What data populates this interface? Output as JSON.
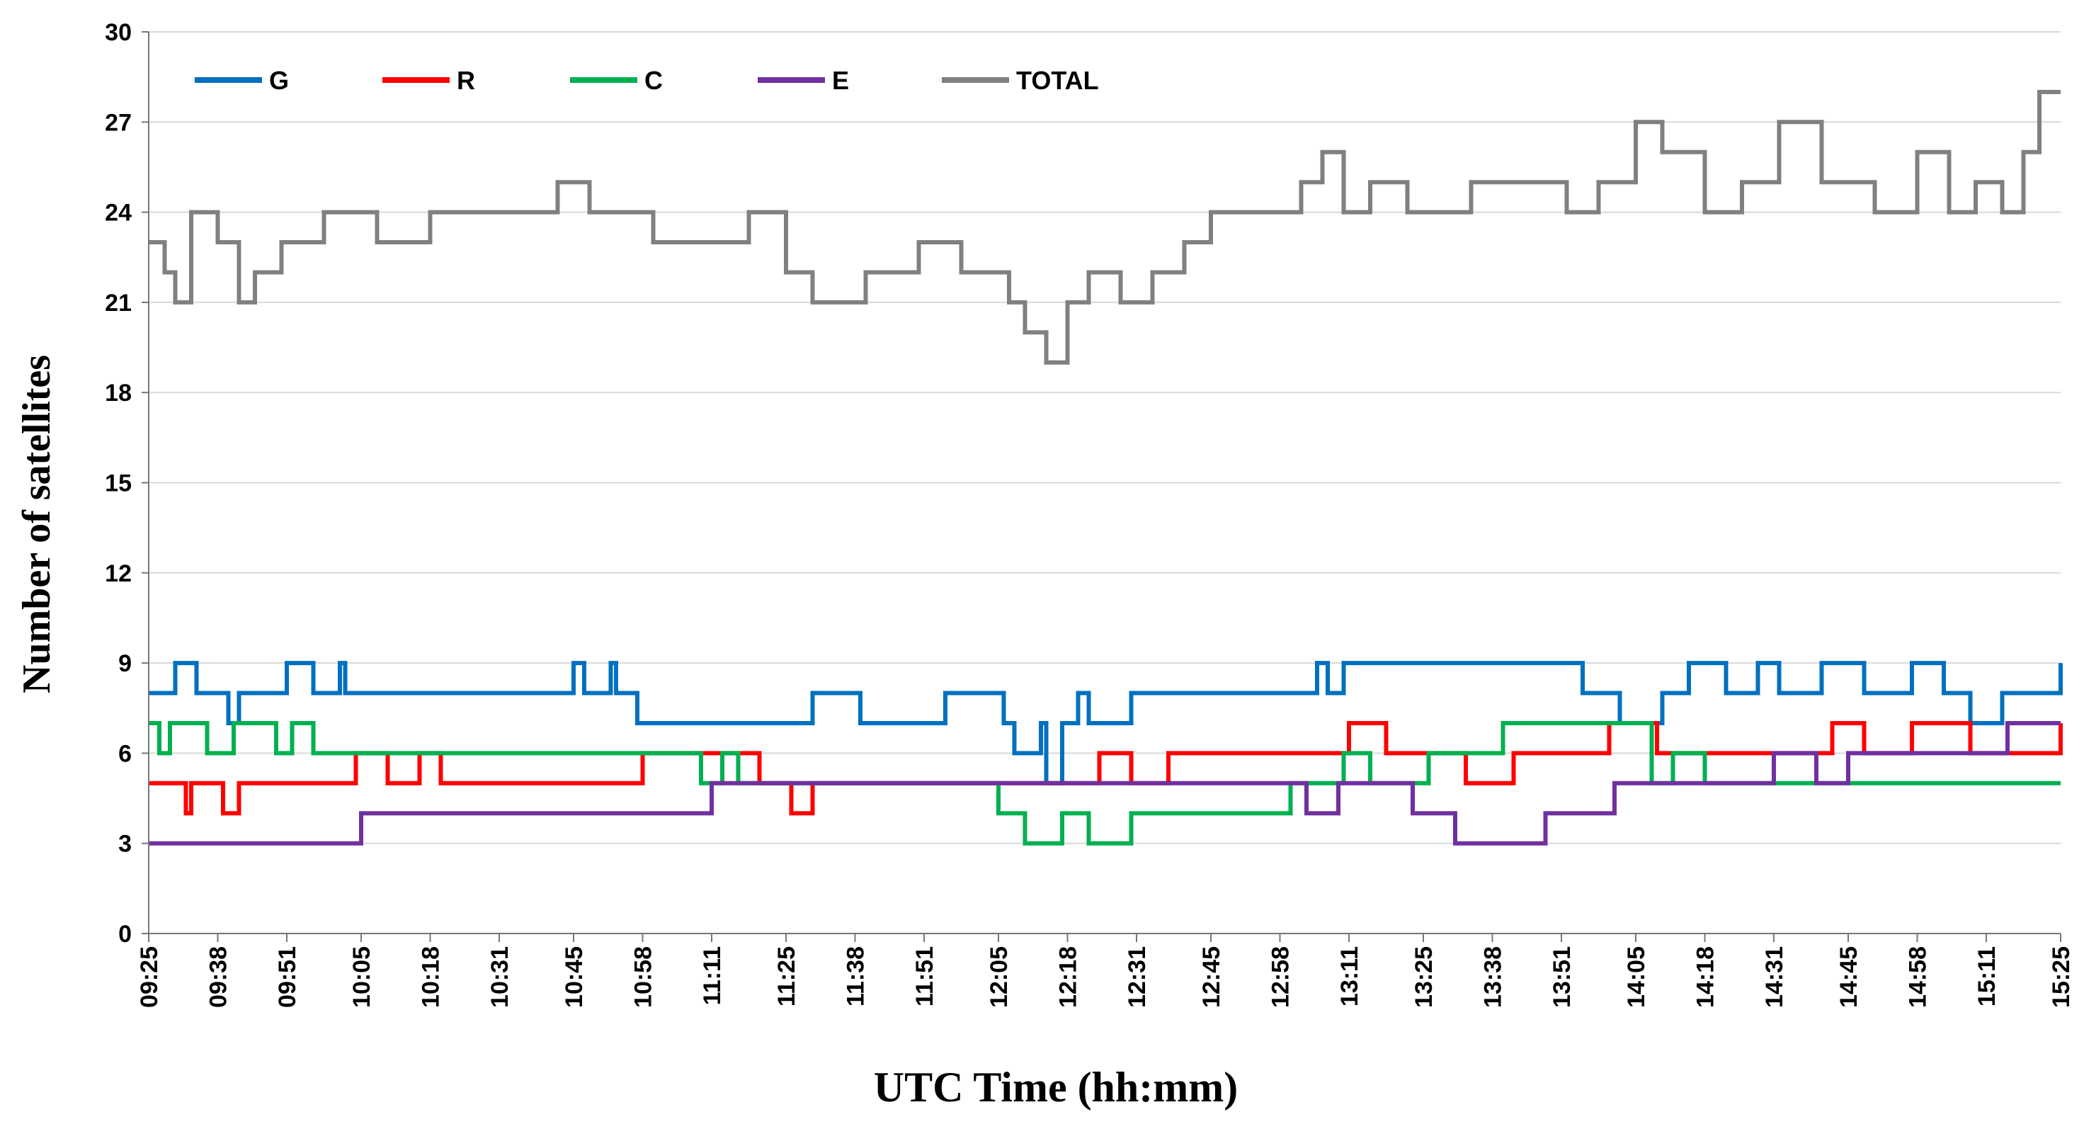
{
  "chart_data": {
    "type": "line",
    "title": "",
    "xlabel": "UTC Time (hh:mm)",
    "ylabel": "Number of satellites",
    "ylim": [
      0,
      30
    ],
    "yticks": [
      0,
      3,
      6,
      9,
      12,
      15,
      18,
      21,
      24,
      27,
      30
    ],
    "xlim": [
      "09:25",
      "15:25"
    ],
    "categories": [
      "09:25",
      "09:38",
      "09:51",
      "10:05",
      "10:18",
      "10:31",
      "10:45",
      "10:58",
      "11:11",
      "11:25",
      "11:38",
      "11:51",
      "12:05",
      "12:18",
      "12:31",
      "12:45",
      "12:58",
      "13:11",
      "13:25",
      "13:38",
      "13:51",
      "14:05",
      "14:18",
      "14:31",
      "14:45",
      "14:58",
      "15:11",
      "15:25"
    ],
    "grid": true,
    "legend_position": "top-left",
    "series": [
      {
        "name": "G",
        "color": "#0070C0",
        "x": [
          "09:25",
          "09:30",
          "09:34",
          "09:35",
          "09:40",
          "09:42",
          "09:44",
          "09:51",
          "09:56",
          "09:59",
          "10:01",
          "10:02",
          "10:03",
          "10:07",
          "10:45",
          "10:47",
          "10:52",
          "10:53",
          "10:55",
          "10:57",
          "11:00",
          "11:20",
          "11:30",
          "11:39",
          "11:45",
          "11:55",
          "12:00",
          "12:06",
          "12:08",
          "12:13",
          "12:14",
          "12:17",
          "12:20",
          "12:22",
          "12:30",
          "12:36",
          "12:45",
          "12:58",
          "13:05",
          "13:07",
          "13:10",
          "13:13",
          "13:24",
          "13:34",
          "13:45",
          "13:55",
          "14:02",
          "14:05",
          "14:10",
          "14:15",
          "14:22",
          "14:28",
          "14:32",
          "14:40",
          "14:48",
          "14:57",
          "15:03",
          "15:05",
          "15:08",
          "15:12",
          "15:14",
          "15:18",
          "15:25"
        ],
        "values": [
          8,
          9,
          8,
          8,
          7,
          8,
          8,
          9,
          8,
          8,
          9,
          8,
          8,
          8,
          9,
          8,
          9,
          8,
          8,
          7,
          7,
          7,
          8,
          7,
          7,
          8,
          8,
          7,
          6,
          7,
          5,
          7,
          8,
          7,
          8,
          8,
          8,
          8,
          9,
          8,
          9,
          9,
          9,
          9,
          9,
          8,
          7,
          7,
          8,
          9,
          8,
          9,
          8,
          9,
          8,
          9,
          8,
          8,
          7,
          7,
          8,
          8,
          9
        ]
      },
      {
        "name": "R",
        "color": "#FF0000",
        "x": [
          "09:25",
          "09:32",
          "09:33",
          "09:39",
          "09:42",
          "09:52",
          "10:04",
          "10:10",
          "10:16",
          "10:20",
          "10:30",
          "10:58",
          "11:12",
          "11:20",
          "11:26",
          "11:30",
          "12:19",
          "12:24",
          "12:30",
          "12:37",
          "12:49",
          "13:07",
          "13:11",
          "13:18",
          "13:33",
          "13:42",
          "13:53",
          "14:00",
          "14:09",
          "14:18",
          "14:27",
          "14:42",
          "14:48",
          "14:57",
          "15:02",
          "15:08",
          "15:25"
        ],
        "values": [
          5,
          4,
          5,
          4,
          5,
          5,
          6,
          5,
          6,
          5,
          5,
          6,
          6,
          5,
          4,
          5,
          5,
          6,
          5,
          6,
          6,
          6,
          7,
          6,
          5,
          6,
          6,
          7,
          6,
          6,
          6,
          7,
          6,
          7,
          7,
          6,
          7
        ]
      },
      {
        "name": "C",
        "color": "#00B050",
        "x": [
          "09:25",
          "09:27",
          "09:29",
          "09:31",
          "09:36",
          "09:41",
          "09:44",
          "09:49",
          "09:52",
          "09:56",
          "10:06",
          "10:30",
          "10:55",
          "11:05",
          "11:09",
          "11:13",
          "11:16",
          "11:20",
          "11:40",
          "12:03",
          "12:05",
          "12:10",
          "12:17",
          "12:22",
          "12:30",
          "12:43",
          "12:55",
          "13:00",
          "13:10",
          "13:15",
          "13:26",
          "13:31",
          "13:40",
          "14:00",
          "14:08",
          "14:12",
          "14:18",
          "14:27",
          "14:35",
          "14:45",
          "15:25"
        ],
        "values": [
          7,
          6,
          7,
          7,
          6,
          7,
          7,
          6,
          7,
          6,
          6,
          6,
          6,
          6,
          5,
          6,
          5,
          5,
          5,
          5,
          4,
          3,
          4,
          3,
          4,
          4,
          4,
          5,
          6,
          5,
          6,
          6,
          7,
          7,
          5,
          6,
          5,
          5,
          5,
          5,
          5
        ]
      },
      {
        "name": "E",
        "color": "#7030A0",
        "x": [
          "09:25",
          "10:05",
          "10:44",
          "11:11",
          "12:57",
          "13:03",
          "13:09",
          "13:12",
          "13:23",
          "13:31",
          "13:38",
          "13:48",
          "13:59",
          "14:01",
          "14:07",
          "14:20",
          "14:31",
          "14:39",
          "14:45",
          "14:52",
          "15:08",
          "15:15",
          "15:25"
        ],
        "values": [
          3,
          4,
          4,
          5,
          5,
          4,
          5,
          5,
          4,
          3,
          3,
          4,
          4,
          5,
          5,
          5,
          6,
          5,
          6,
          6,
          6,
          7,
          7
        ]
      },
      {
        "name": "TOTAL",
        "color": "#808080",
        "x": [
          "09:25",
          "09:28",
          "09:30",
          "09:33",
          "09:38",
          "09:42",
          "09:45",
          "09:50",
          "09:52",
          "09:58",
          "10:05",
          "10:08",
          "10:18",
          "10:32",
          "10:42",
          "10:48",
          "10:52",
          "10:56",
          "11:00",
          "11:05",
          "11:10",
          "11:18",
          "11:25",
          "11:30",
          "11:40",
          "11:50",
          "11:58",
          "12:05",
          "12:07",
          "12:10",
          "12:14",
          "12:18",
          "12:22",
          "12:28",
          "12:34",
          "12:40",
          "12:45",
          "12:55",
          "12:58",
          "13:02",
          "13:06",
          "13:10",
          "13:15",
          "13:22",
          "13:28",
          "13:34",
          "13:44",
          "13:52",
          "13:58",
          "14:02",
          "14:05",
          "14:10",
          "14:18",
          "14:25",
          "14:32",
          "14:40",
          "14:50",
          "14:58",
          "15:04",
          "15:09",
          "15:14",
          "15:18",
          "15:21",
          "15:25"
        ],
        "values": [
          23,
          22,
          21,
          24,
          23,
          21,
          22,
          23,
          23,
          24,
          24,
          23,
          24,
          24,
          25,
          24,
          24,
          24,
          23,
          23,
          23,
          24,
          22,
          21,
          22,
          23,
          22,
          22,
          21,
          20,
          19,
          21,
          22,
          21,
          22,
          23,
          24,
          24,
          24,
          25,
          26,
          24,
          25,
          24,
          24,
          25,
          25,
          24,
          25,
          25,
          27,
          26,
          24,
          25,
          27,
          25,
          24,
          26,
          24,
          25,
          24,
          26,
          28,
          28
        ]
      }
    ]
  }
}
